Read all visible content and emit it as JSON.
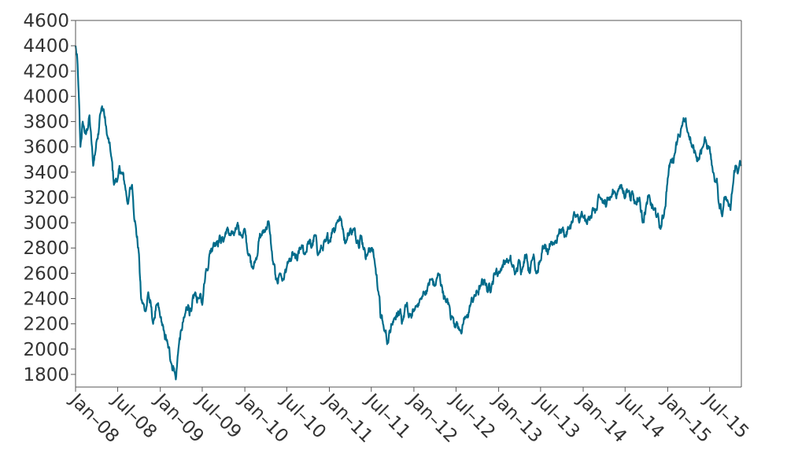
{
  "chart_data": {
    "type": "line",
    "title": "",
    "xlabel": "",
    "ylabel": "",
    "grid": false,
    "legend": "none",
    "color": "#006b8a",
    "x_ticks": [
      "Jan–08",
      "Jul–08",
      "Jan–09",
      "Jul–09",
      "Jan–10",
      "Jul–10",
      "Jan–11",
      "Jul–11",
      "Jan–12",
      "Jul–12",
      "Jan–13",
      "Jul–13",
      "Jan–14",
      "Jul–14",
      "Jan–15",
      "Jul–15"
    ],
    "y_ticks": [
      1800,
      2000,
      2200,
      2400,
      2600,
      2800,
      3000,
      3200,
      3400,
      3600,
      3800,
      4000,
      4200,
      4400,
      4600
    ],
    "xlim": [
      "2008-01-01",
      "2015-11-15"
    ],
    "ylim": [
      1700,
      4600
    ],
    "series": [
      {
        "x": [
          "2008-01-01",
          "2008-01-10",
          "2008-01-22",
          "2008-02-01",
          "2008-02-15",
          "2008-03-01",
          "2008-03-17",
          "2008-04-01",
          "2008-04-15",
          "2008-05-01",
          "2008-05-15",
          "2008-06-01",
          "2008-06-15",
          "2008-07-01",
          "2008-07-15",
          "2008-08-01",
          "2008-08-15",
          "2008-09-01",
          "2008-09-15",
          "2008-10-01",
          "2008-10-10",
          "2008-10-27",
          "2008-11-10",
          "2008-12-01",
          "2008-12-15",
          "2009-01-01",
          "2009-01-15",
          "2009-02-01",
          "2009-02-15",
          "2009-03-01",
          "2009-03-09",
          "2009-03-20",
          "2009-04-01",
          "2009-04-15",
          "2009-05-01",
          "2009-05-15",
          "2009-06-01",
          "2009-06-15",
          "2009-07-01",
          "2009-07-15",
          "2009-08-01",
          "2009-08-15",
          "2009-09-01",
          "2009-09-15",
          "2009-10-01",
          "2009-10-15",
          "2009-11-01",
          "2009-11-15",
          "2009-12-01",
          "2009-12-15",
          "2010-01-01",
          "2010-01-15",
          "2010-02-01",
          "2010-02-15",
          "2010-03-01",
          "2010-03-15",
          "2010-04-01",
          "2010-04-15",
          "2010-05-01",
          "2010-05-15",
          "2010-06-01",
          "2010-06-15",
          "2010-07-01",
          "2010-07-15",
          "2010-08-01",
          "2010-08-15",
          "2010-09-01",
          "2010-09-15",
          "2010-10-01",
          "2010-10-15",
          "2010-11-01",
          "2010-11-15",
          "2010-12-01",
          "2010-12-15",
          "2011-01-01",
          "2011-01-15",
          "2011-02-01",
          "2011-02-15",
          "2011-03-01",
          "2011-03-15",
          "2011-04-01",
          "2011-04-15",
          "2011-05-01",
          "2011-05-15",
          "2011-06-01",
          "2011-06-15",
          "2011-07-01",
          "2011-07-15",
          "2011-08-01",
          "2011-08-10",
          "2011-08-25",
          "2011-09-12",
          "2011-09-25",
          "2011-10-10",
          "2011-10-25",
          "2011-11-10",
          "2011-11-25",
          "2011-12-10",
          "2012-01-01",
          "2012-01-15",
          "2012-02-01",
          "2012-02-15",
          "2012-03-01",
          "2012-03-15",
          "2012-04-01",
          "2012-04-15",
          "2012-05-01",
          "2012-05-15",
          "2012-06-01",
          "2012-06-15",
          "2012-07-01",
          "2012-07-15",
          "2012-08-01",
          "2012-08-15",
          "2012-09-01",
          "2012-09-15",
          "2012-10-01",
          "2012-10-15",
          "2012-11-01",
          "2012-11-15",
          "2012-12-01",
          "2012-12-15",
          "2013-01-01",
          "2013-01-15",
          "2013-02-01",
          "2013-02-15",
          "2013-03-01",
          "2013-03-15",
          "2013-04-01",
          "2013-04-15",
          "2013-05-01",
          "2013-05-15",
          "2013-06-01",
          "2013-06-15",
          "2013-07-01",
          "2013-07-15",
          "2013-08-01",
          "2013-08-15",
          "2013-09-01",
          "2013-09-15",
          "2013-10-01",
          "2013-10-15",
          "2013-11-01",
          "2013-11-15",
          "2013-12-01",
          "2013-12-15",
          "2014-01-01",
          "2014-01-15",
          "2014-02-01",
          "2014-02-15",
          "2014-03-01",
          "2014-03-15",
          "2014-04-01",
          "2014-04-15",
          "2014-05-01",
          "2014-05-15",
          "2014-06-01",
          "2014-06-15",
          "2014-07-01",
          "2014-07-15",
          "2014-08-01",
          "2014-08-15",
          "2014-09-01",
          "2014-09-15",
          "2014-10-01",
          "2014-10-15",
          "2014-11-01",
          "2014-11-15",
          "2014-12-01",
          "2014-12-15",
          "2015-01-01",
          "2015-01-15",
          "2015-02-01",
          "2015-02-15",
          "2015-03-01",
          "2015-03-15",
          "2015-04-01",
          "2015-04-15",
          "2015-05-01",
          "2015-05-15",
          "2015-06-01",
          "2015-06-15",
          "2015-07-01",
          "2015-07-15",
          "2015-08-01",
          "2015-08-10",
          "2015-08-24",
          "2015-09-10",
          "2015-09-29",
          "2015-10-10",
          "2015-10-20",
          "2015-11-01",
          "2015-11-15"
        ],
        "y": [
          4400,
          4250,
          3600,
          3800,
          3700,
          3850,
          3450,
          3650,
          3850,
          3900,
          3700,
          3550,
          3300,
          3350,
          3400,
          3300,
          3150,
          3300,
          3000,
          2750,
          2400,
          2300,
          2450,
          2200,
          2350,
          2250,
          2150,
          2050,
          1900,
          1850,
          1760,
          2000,
          2150,
          2250,
          2350,
          2300,
          2450,
          2400,
          2350,
          2600,
          2750,
          2800,
          2850,
          2900,
          2850,
          2950,
          2900,
          2900,
          3000,
          2900,
          2950,
          2750,
          2650,
          2700,
          2850,
          2900,
          2950,
          3000,
          2700,
          2550,
          2600,
          2550,
          2650,
          2700,
          2750,
          2700,
          2800,
          2750,
          2850,
          2800,
          2900,
          2750,
          2800,
          2850,
          2850,
          2950,
          3000,
          3050,
          2950,
          2850,
          2950,
          2950,
          2850,
          2900,
          2800,
          2750,
          2800,
          2700,
          2450,
          2250,
          2150,
          2050,
          2200,
          2250,
          2300,
          2200,
          2350,
          2250,
          2300,
          2350,
          2400,
          2450,
          2500,
          2550,
          2500,
          2600,
          2500,
          2400,
          2350,
          2250,
          2200,
          2150,
          2200,
          2250,
          2350,
          2400,
          2450,
          2500,
          2550,
          2450,
          2500,
          2600,
          2600,
          2650,
          2700,
          2700,
          2650,
          2600,
          2700,
          2650,
          2750,
          2600,
          2750,
          2600,
          2700,
          2800,
          2750,
          2850,
          2850,
          2900,
          2950,
          2900,
          2950,
          3000,
          3050,
          3000,
          3050,
          3000,
          3050,
          3100,
          3100,
          3200,
          3150,
          3200,
          3200,
          3250,
          3250,
          3300,
          3200,
          3250,
          3250,
          3150,
          3200,
          3000,
          3150,
          3200,
          3100,
          3050,
          2950,
          3050,
          3350,
          3500,
          3550,
          3700,
          3750,
          3800,
          3700,
          3600,
          3550,
          3500,
          3600,
          3650,
          3600,
          3400,
          3350,
          3150,
          3050,
          3200,
          3100,
          3300,
          3450,
          3400,
          3450
        ]
      }
    ]
  }
}
